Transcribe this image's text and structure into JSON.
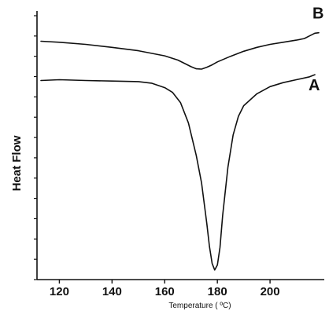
{
  "chart_data": {
    "type": "line",
    "xlabel": "Temperature ( ºC)",
    "ylabel": "Heat Flow",
    "xlim": [
      113,
      220
    ],
    "ylim": [
      0,
      100
    ],
    "x_ticks": [
      120,
      140,
      160,
      180,
      200
    ],
    "x_tick_labels": [
      "120",
      "140",
      "160",
      "180",
      "200"
    ],
    "grid": false,
    "series": [
      {
        "name": "B",
        "points": [
          [
            113,
            89.8
          ],
          [
            120,
            89.4
          ],
          [
            130,
            88.6
          ],
          [
            140,
            87.5
          ],
          [
            150,
            86.2
          ],
          [
            160,
            84.3
          ],
          [
            165,
            82.7
          ],
          [
            168,
            81.2
          ],
          [
            170,
            80.2
          ],
          [
            172,
            79.4
          ],
          [
            174,
            79.3
          ],
          [
            176,
            80.0
          ],
          [
            178,
            80.9
          ],
          [
            180,
            82.0
          ],
          [
            185,
            84.1
          ],
          [
            190,
            86.0
          ],
          [
            195,
            87.5
          ],
          [
            200,
            88.6
          ],
          [
            205,
            89.4
          ],
          [
            210,
            90.2
          ],
          [
            213,
            90.8
          ],
          [
            215,
            91.8
          ],
          [
            217,
            92.8
          ],
          [
            218.5,
            93.0
          ]
        ]
      },
      {
        "name": "A",
        "points": [
          [
            113,
            75.0
          ],
          [
            120,
            75.3
          ],
          [
            130,
            75.0
          ],
          [
            140,
            74.8
          ],
          [
            150,
            74.6
          ],
          [
            155,
            74.0
          ],
          [
            160,
            72.3
          ],
          [
            163,
            70.5
          ],
          [
            166,
            66.7
          ],
          [
            169,
            59.0
          ],
          [
            172,
            46.7
          ],
          [
            174,
            36.4
          ],
          [
            176,
            21.0
          ],
          [
            177,
            12.5
          ],
          [
            178,
            6.1
          ],
          [
            179,
            3.6
          ],
          [
            180,
            5.5
          ],
          [
            181,
            12.1
          ],
          [
            182,
            24.2
          ],
          [
            184,
            42.4
          ],
          [
            186,
            54.5
          ],
          [
            188,
            61.5
          ],
          [
            190,
            65.5
          ],
          [
            195,
            70.0
          ],
          [
            200,
            72.7
          ],
          [
            205,
            74.2
          ],
          [
            210,
            75.3
          ],
          [
            215,
            76.4
          ],
          [
            217,
            77.2
          ]
        ]
      }
    ]
  }
}
